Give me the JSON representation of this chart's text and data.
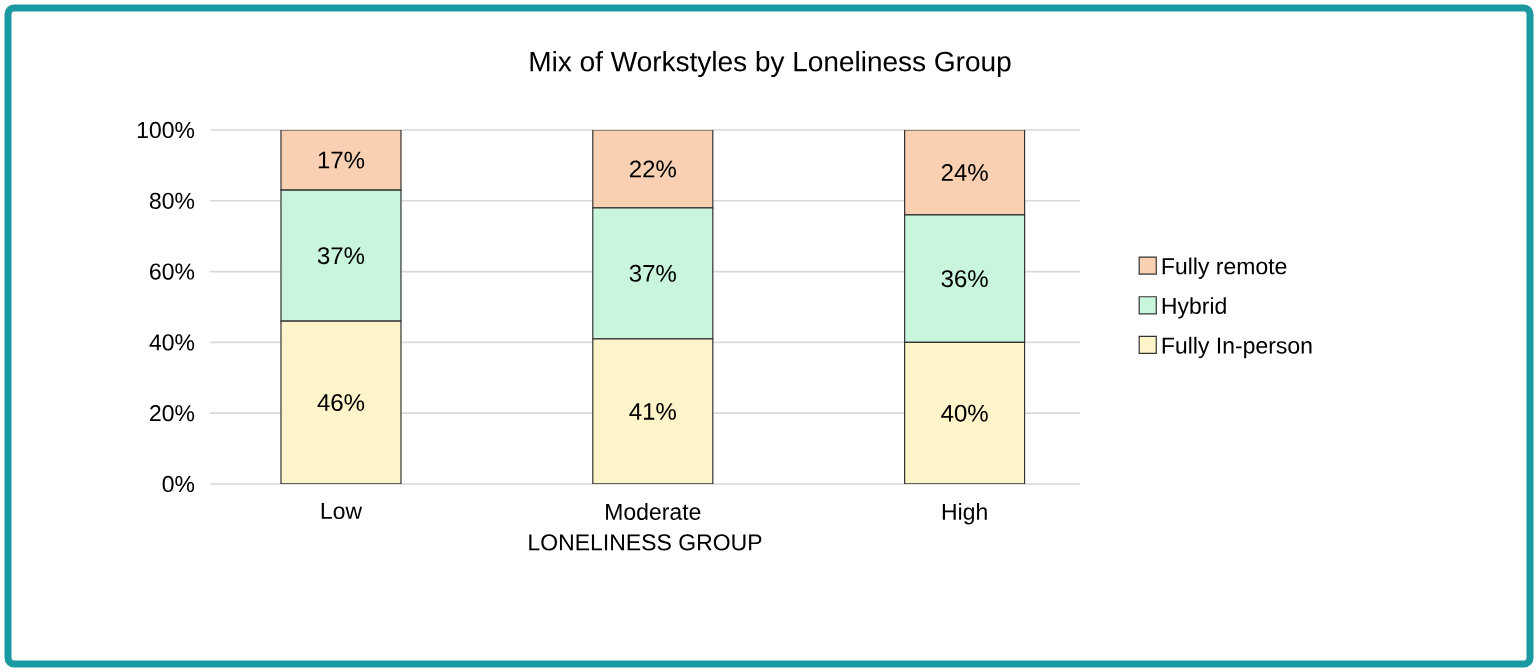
{
  "chart_data": {
    "type": "bar",
    "stacked": true,
    "title": "Mix of Workstyles by Loneliness Group",
    "xlabel": "LONELINESS GROUP",
    "categories": [
      "Low",
      "Moderate",
      "High"
    ],
    "series": [
      {
        "name": "Fully In-person",
        "color": "#fdf5c9",
        "values": [
          46,
          41,
          40
        ],
        "value_labels": [
          "46%",
          "41%",
          "40%"
        ]
      },
      {
        "name": "Hybrid",
        "color": "#c9f5dc",
        "values": [
          37,
          37,
          36
        ],
        "value_labels": [
          "37%",
          "37%",
          "36%"
        ]
      },
      {
        "name": "Fully remote",
        "color": "#f9d0b2",
        "values": [
          17,
          22,
          24
        ],
        "value_labels": [
          "17%",
          "22%",
          "24%"
        ]
      }
    ],
    "ylim": [
      0,
      100
    ],
    "yticks": [
      {
        "value": 0,
        "label": "0%"
      },
      {
        "value": 20,
        "label": "20%"
      },
      {
        "value": 40,
        "label": "40%"
      },
      {
        "value": 60,
        "label": "60%"
      },
      {
        "value": 80,
        "label": "80%"
      },
      {
        "value": 100,
        "label": "100%"
      }
    ],
    "grid": "y",
    "legend": "right"
  }
}
